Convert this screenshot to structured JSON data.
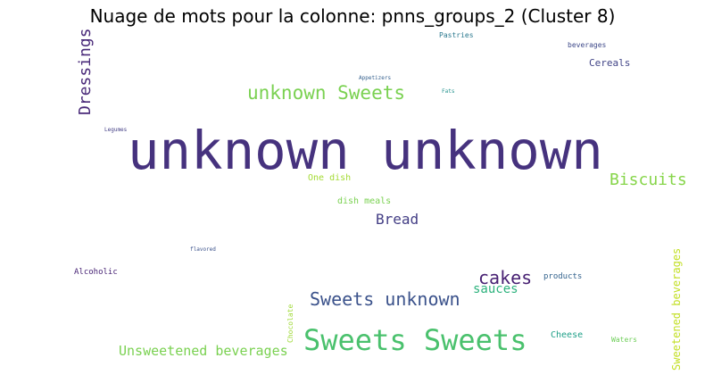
{
  "title": "Nuage de mots pour la colonne: pnns_groups_2 (Cluster 8)",
  "words": [
    {
      "text": "unknown unknown",
      "color": "#46327e",
      "orientation": "horizontal"
    },
    {
      "text": "Sweets Sweets",
      "color": "#4ac16d",
      "orientation": "horizontal"
    },
    {
      "text": "unknown Sweets",
      "color": "#7ad151",
      "orientation": "horizontal"
    },
    {
      "text": "Sweets unknown",
      "color": "#3b528b",
      "orientation": "horizontal"
    },
    {
      "text": "Dressings",
      "color": "#482878",
      "orientation": "vertical"
    },
    {
      "text": "Biscuits",
      "color": "#86d549",
      "orientation": "horizontal"
    },
    {
      "text": "Unsweetened beverages",
      "color": "#7ad151",
      "orientation": "horizontal"
    },
    {
      "text": "Sweetened beverages",
      "color": "#c2df23",
      "orientation": "vertical"
    },
    {
      "text": "cakes",
      "color": "#482173",
      "orientation": "horizontal"
    },
    {
      "text": "Bread",
      "color": "#433e85",
      "orientation": "horizontal"
    },
    {
      "text": "sauces",
      "color": "#2db27d",
      "orientation": "horizontal"
    },
    {
      "text": "Cereals",
      "color": "#414487",
      "orientation": "horizontal"
    },
    {
      "text": "One dish",
      "color": "#a5db36",
      "orientation": "horizontal"
    },
    {
      "text": "dish meals",
      "color": "#7ad151",
      "orientation": "horizontal"
    },
    {
      "text": "Cheese",
      "color": "#1fa088",
      "orientation": "horizontal"
    },
    {
      "text": "Chocolate",
      "color": "#a0da39",
      "orientation": "vertical"
    },
    {
      "text": "Pastries",
      "color": "#2a788e",
      "orientation": "horizontal"
    },
    {
      "text": "beverages",
      "color": "#3e4989",
      "orientation": "horizontal"
    },
    {
      "text": "Alcoholic",
      "color": "#482475",
      "orientation": "horizontal"
    },
    {
      "text": "products",
      "color": "#33638d",
      "orientation": "horizontal"
    },
    {
      "text": "Waters",
      "color": "#6ece58",
      "orientation": "horizontal"
    },
    {
      "text": "Appetizers",
      "color": "#35608d",
      "orientation": "horizontal"
    },
    {
      "text": "Fats",
      "color": "#21918c",
      "orientation": "horizontal"
    },
    {
      "text": "Legumes",
      "color": "#433e85",
      "orientation": "horizontal"
    },
    {
      "text": "flavored",
      "color": "#3b528b",
      "orientation": "horizontal"
    }
  ]
}
